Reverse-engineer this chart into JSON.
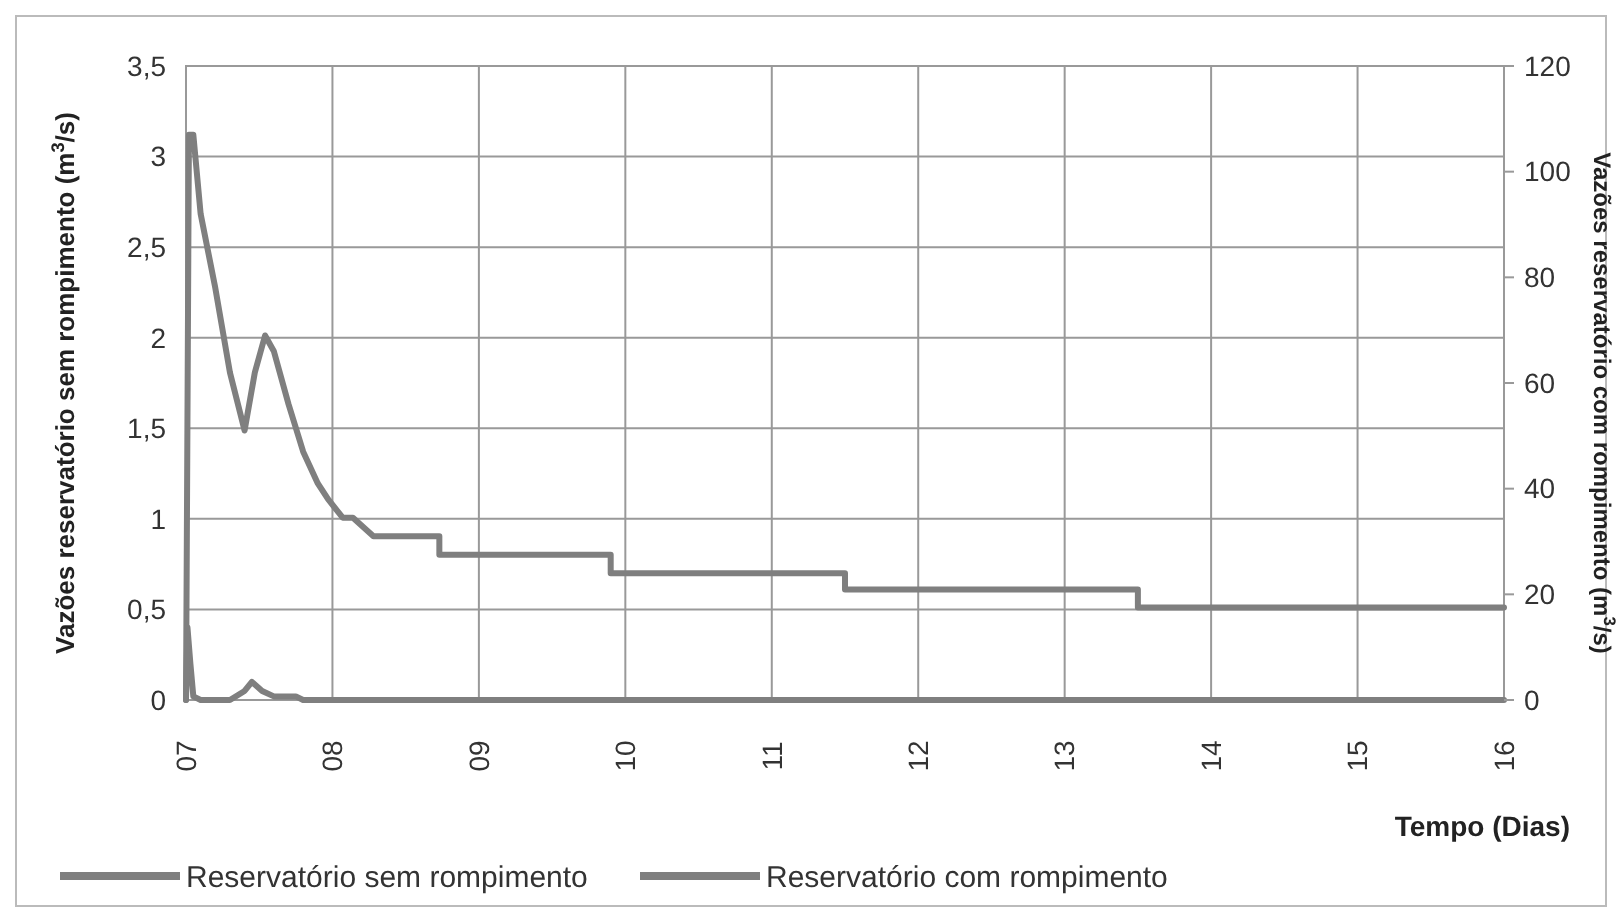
{
  "chart_data": {
    "type": "line",
    "xlabel": "Tempo (Dias)",
    "ylabel": "Vazões reservatório sem rompimento (m$^{3}$/s)",
    "y2label": "Vazões reservatório com rompimento (m$^{3}$/s)",
    "xlim": [
      7,
      16
    ],
    "xticks": [
      {
        "value": 7,
        "label": "07"
      },
      {
        "value": 8,
        "label": "08"
      },
      {
        "value": 9,
        "label": "09"
      },
      10,
      11,
      12,
      13,
      14,
      15,
      16
    ],
    "ylim": [
      0,
      3.5
    ],
    "yticks": [
      0,
      {
        "value": 0.5,
        "label": "0,5"
      },
      1,
      {
        "value": 1.5,
        "label": "1,5"
      },
      2,
      {
        "value": 2.5,
        "label": "2,5"
      },
      3,
      {
        "value": 3.5,
        "label": "3,5"
      }
    ],
    "y2lim": [
      0,
      120
    ],
    "y2ticks": [
      0,
      20,
      40,
      60,
      80,
      100,
      120
    ],
    "grid": true,
    "legend": "bottom",
    "line_style": "solid",
    "series": [
      {
        "name": "Reservatório sem rompimento",
        "color": "#7f7f7f",
        "x": [
          7,
          7.01,
          7.03,
          7.05,
          7.1,
          7.3,
          7.4,
          7.45,
          7.52,
          7.6,
          7.75,
          7.8,
          16
        ],
        "values": [
          0,
          0.4,
          0.2,
          0.02,
          0,
          0,
          0.05,
          0.1,
          0.05,
          0.02,
          0.02,
          0,
          0
        ]
      },
      {
        "name": "Reservatório com rompimento",
        "color": "#7f7f7f",
        "axis": "y2",
        "x": [
          7,
          7.02,
          7.05,
          7.1,
          7.2,
          7.3,
          7.4,
          7.47,
          7.54,
          7.6,
          7.7,
          7.8,
          7.9,
          7.97,
          8.07,
          8.14,
          8.28,
          8.73,
          8.73,
          9.9,
          9.9,
          11.5,
          11.5,
          13.5,
          13.5,
          16
        ],
        "values": [
          0,
          107,
          107,
          92,
          78,
          62,
          51,
          62,
          69,
          66,
          56,
          47,
          41,
          38,
          34.5,
          34.5,
          31,
          31,
          27.5,
          27.5,
          24,
          24,
          20.9,
          20.9,
          17.5,
          17.5
        ]
      }
    ]
  }
}
